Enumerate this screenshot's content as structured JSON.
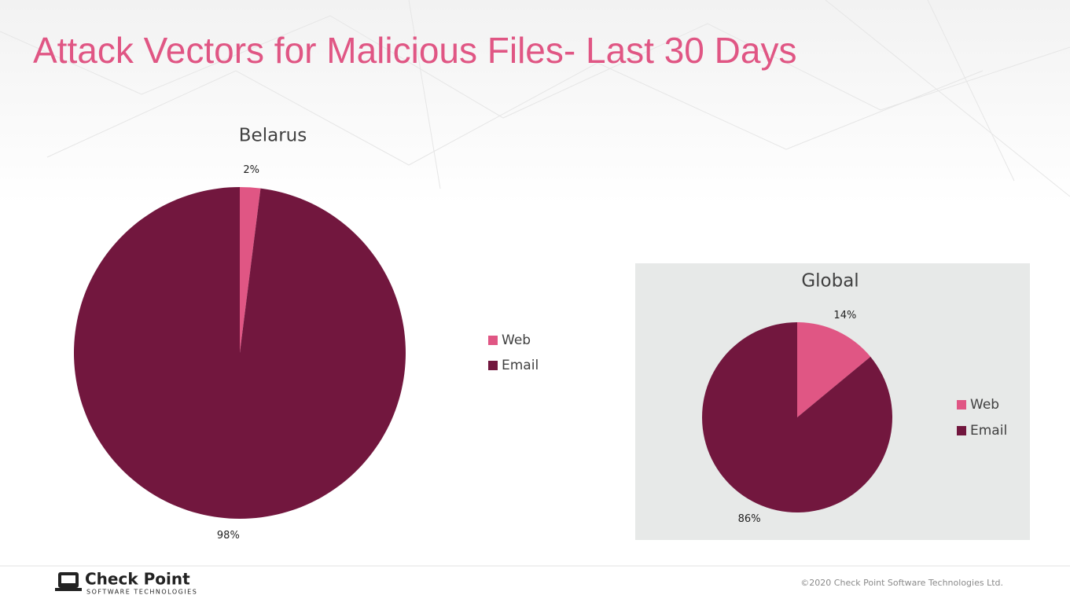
{
  "title": "Attack Vectors for Malicious Files- Last 30 Days",
  "chart_data": [
    {
      "type": "pie",
      "title": "Belarus",
      "categories": [
        "Web",
        "Email"
      ],
      "values": [
        2,
        98
      ],
      "value_labels": [
        "2%",
        "98%"
      ],
      "colors": [
        "#e05684",
        "#72173e"
      ],
      "legend": "right"
    },
    {
      "type": "pie",
      "title": "Global",
      "categories": [
        "Web",
        "Email"
      ],
      "values": [
        14,
        86
      ],
      "value_labels": [
        "14%",
        "86%"
      ],
      "colors": [
        "#e05684",
        "#72173e"
      ],
      "legend": "right",
      "background": "#e7e9e8"
    }
  ],
  "footer": {
    "logo": "Check Point",
    "logo_sub": "SOFTWARE TECHNOLOGIES",
    "copyright": "©2020 Check Point Software Technologies Ltd."
  }
}
